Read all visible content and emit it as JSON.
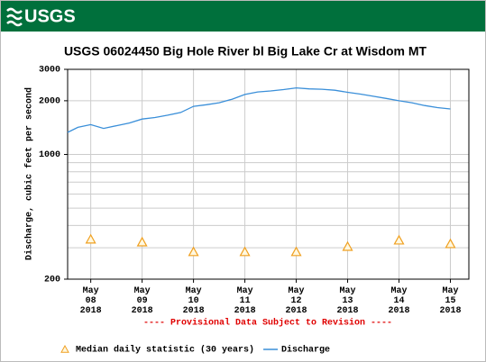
{
  "header": {
    "logo": "USGS"
  },
  "chart_data": {
    "type": "line",
    "title": "USGS 06024450 Big Hole River bl Big Lake Cr at Wisdom MT",
    "y_label": "Discharge, cubic feet per second",
    "annotation": "---- Provisional Data Subject to Revision ----",
    "log_y": true,
    "grid": true,
    "xlim": [
      7.55,
      15.36
    ],
    "xticks": [
      {
        "value": 8,
        "label": "May 08 2018"
      },
      {
        "value": 9,
        "label": "May 09 2018"
      },
      {
        "value": 10,
        "label": "May 10 2018"
      },
      {
        "value": 11,
        "label": "May 11 2018"
      },
      {
        "value": 12,
        "label": "May 12 2018"
      },
      {
        "value": 13,
        "label": "May 13 2018"
      },
      {
        "value": 14,
        "label": "May 14 2018"
      },
      {
        "value": 15,
        "label": "May 15 2018"
      }
    ],
    "ylim": [
      200,
      3000
    ],
    "yticks": [
      200,
      1000,
      2000,
      3000
    ],
    "y_minor_grid": [
      300,
      400,
      500,
      600,
      700,
      800,
      900
    ],
    "series": [
      {
        "name": "Median daily statistic (30 years)",
        "color": "#f0a020",
        "marker": "triangle",
        "x": [
          8,
          9,
          10,
          11,
          12,
          13,
          14,
          15
        ],
        "values": [
          334,
          322,
          284,
          284,
          284,
          304,
          330,
          315
        ]
      },
      {
        "name": "Discharge",
        "color": "#3a8fd9",
        "marker": "line",
        "x": [
          7.55,
          7.75,
          8.0,
          8.25,
          8.5,
          8.75,
          9.0,
          9.25,
          9.5,
          9.75,
          10.0,
          10.25,
          10.5,
          10.75,
          11.0,
          11.25,
          11.5,
          11.75,
          12.0,
          12.25,
          12.5,
          12.75,
          13.0,
          13.25,
          13.5,
          13.75,
          14.0,
          14.25,
          14.5,
          14.75,
          15.0
        ],
        "values": [
          1330,
          1420,
          1470,
          1400,
          1450,
          1500,
          1580,
          1610,
          1660,
          1720,
          1860,
          1900,
          1950,
          2040,
          2170,
          2240,
          2270,
          2310,
          2360,
          2330,
          2320,
          2290,
          2230,
          2180,
          2120,
          2060,
          2000,
          1950,
          1880,
          1830,
          1800
        ]
      }
    ]
  }
}
